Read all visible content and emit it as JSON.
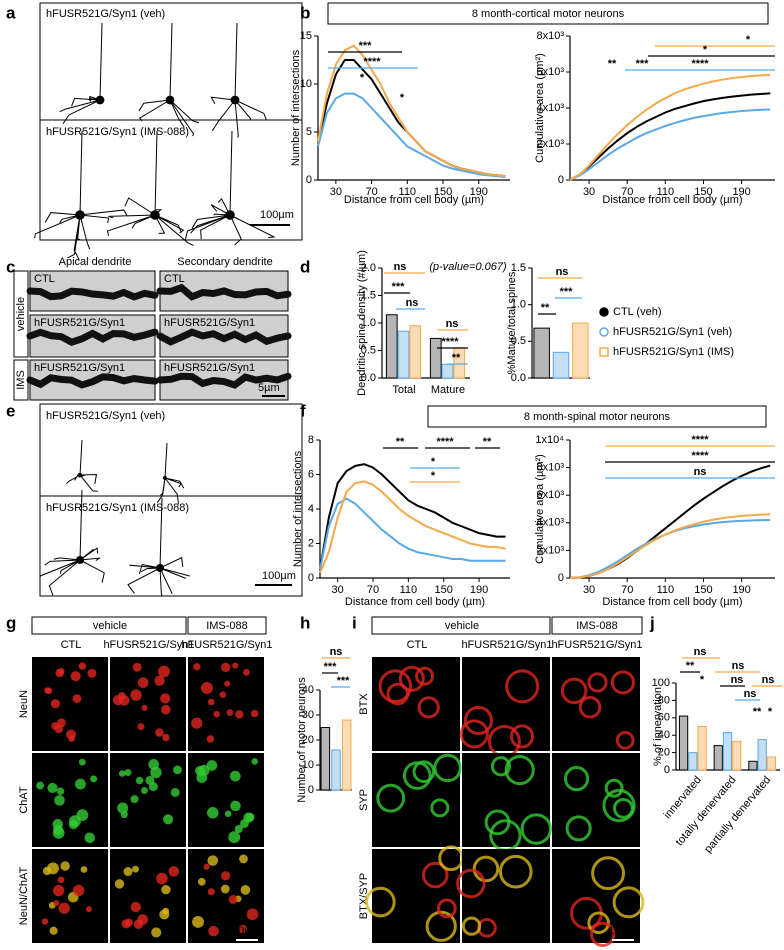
{
  "figure": {
    "panel_labels": [
      "a",
      "b",
      "c",
      "d",
      "e",
      "f",
      "g",
      "h",
      "i",
      "j"
    ],
    "a": {
      "labels": [
        "hFUSR521G/Syn1 (veh)",
        "hFUSR521G/Syn1 (IMS-088)"
      ],
      "scale": "100µm"
    },
    "b": {
      "header": "8 month-cortical motor neurons"
    },
    "c": {
      "columns": [
        "Apical dendrite",
        "Secondary dendrite"
      ],
      "row_groups": [
        "vehicle",
        "IMS"
      ],
      "cell_labels": [
        "CTL",
        "CTL",
        "hFUSR521G/Syn1",
        "hFUSR521G/Syn1",
        "hFUSR521G/Syn1",
        "hFUSR521G/Syn1"
      ],
      "scale": "5µm"
    },
    "e": {
      "labels": [
        "hFUSR521G/Syn1 (veh)",
        "hFUSR521G/Syn1 (IMS-088)"
      ],
      "scale": "100µm"
    },
    "f": {
      "header": "8 month-spinal motor neurons"
    },
    "g": {
      "groups": [
        "vehicle",
        "IMS-088"
      ],
      "columns": [
        "CTL",
        "hFUSR521G/Syn1",
        "hFUSR521G/Syn1"
      ],
      "rows": [
        "NeuN",
        "ChAT",
        "NeuN/ChAT"
      ],
      "scale": "50µm"
    },
    "i": {
      "groups": [
        "vehicle",
        "IMS-088"
      ],
      "columns": [
        "CTL",
        "hFUSR521G/Syn1",
        "hFUSR521G/Syn1"
      ],
      "rows": [
        "BTX",
        "SYP",
        "BTX/SYP"
      ],
      "scale": "15µm"
    }
  },
  "chart_data": [
    {
      "type": "line",
      "xlabel": "Distance from cell body (µm)",
      "ylabel": "Number of intersections",
      "x": [
        10,
        20,
        30,
        40,
        50,
        60,
        70,
        80,
        90,
        100,
        110,
        120,
        130,
        140,
        150,
        160,
        170,
        180,
        190,
        200,
        210,
        220
      ],
      "xlim": [
        10,
        225
      ],
      "xticks": [
        30,
        70,
        110,
        150,
        190
      ],
      "ylim": [
        0,
        15
      ],
      "yticks": [
        0,
        5,
        10,
        15
      ],
      "series": [
        {
          "color": "#000000",
          "values": [
            4,
            8,
            11,
            12.5,
            12.5,
            11.5,
            10.5,
            9,
            7.5,
            6,
            5,
            4,
            3,
            2.5,
            2,
            1.5,
            1.2,
            1,
            0.8,
            0.6,
            0.5,
            0.4
          ]
        },
        {
          "color": "#5aa9e6",
          "values": [
            3.5,
            7,
            8.5,
            9,
            9,
            8.5,
            7.5,
            6.5,
            5.5,
            4.5,
            3.5,
            3,
            2.5,
            2,
            1.5,
            1.2,
            1,
            0.8,
            0.6,
            0.5,
            0.4,
            0.3
          ]
        },
        {
          "color": "#f5a94a",
          "values": [
            4,
            9,
            12,
            13.5,
            14,
            13,
            11.5,
            10,
            8,
            6.5,
            5,
            4,
            3,
            2.5,
            2,
            1.5,
            1.2,
            1,
            0.8,
            0.6,
            0.5,
            0.4
          ]
        }
      ],
      "annotations": [
        {
          "text": "***",
          "color": "#000000"
        },
        {
          "text": "****",
          "color": "#5aa9e6"
        },
        {
          "text": "*",
          "color": "#f5a94a"
        },
        {
          "text": "*",
          "color": "#f5a94a"
        }
      ]
    },
    {
      "type": "line",
      "xlabel": "Distance from cell body (µm)",
      "ylabel": "Cumulative area (µm²)",
      "x": [
        10,
        20,
        30,
        40,
        50,
        60,
        70,
        80,
        90,
        100,
        110,
        120,
        130,
        140,
        150,
        160,
        170,
        180,
        190,
        200,
        210,
        220
      ],
      "xlim": [
        10,
        225
      ],
      "xticks": [
        30,
        70,
        110,
        150,
        190
      ],
      "ylim": [
        0,
        8000
      ],
      "yticks": [
        0,
        {
          "value": 2000,
          "label": "2x10³"
        },
        {
          "value": 4000,
          "label": "4x10³"
        },
        {
          "value": 6000,
          "label": "6x10³"
        },
        {
          "value": 8000,
          "label": "8x10³"
        }
      ],
      "series": [
        {
          "color": "#000000",
          "values": [
            0,
            300,
            750,
            1250,
            1750,
            2200,
            2600,
            2950,
            3250,
            3500,
            3750,
            3950,
            4100,
            4250,
            4380,
            4480,
            4560,
            4630,
            4690,
            4740,
            4780,
            4810
          ]
        },
        {
          "color": "#5aa9e6",
          "values": [
            0,
            250,
            600,
            1000,
            1400,
            1750,
            2050,
            2350,
            2600,
            2800,
            3000,
            3170,
            3320,
            3450,
            3550,
            3640,
            3720,
            3780,
            3830,
            3870,
            3900,
            3920
          ]
        },
        {
          "color": "#f5a94a",
          "values": [
            0,
            300,
            800,
            1400,
            2000,
            2550,
            3050,
            3500,
            3900,
            4250,
            4550,
            4820,
            5030,
            5200,
            5350,
            5480,
            5580,
            5660,
            5720,
            5770,
            5810,
            5840
          ]
        }
      ],
      "annotations": [
        {
          "text": "*",
          "color": "#f5a94a"
        },
        {
          "text": "*",
          "color": "#000000"
        },
        {
          "text": "**",
          "color": "#5aa9e6"
        },
        {
          "text": "***",
          "color": "#5aa9e6"
        },
        {
          "text": "****",
          "color": "#5aa9e6"
        }
      ]
    },
    {
      "type": "bar",
      "ylabel": "Dendritic spine density (#/µm)",
      "categories": [
        "Total",
        "Mature"
      ],
      "ylim": [
        0,
        2
      ],
      "yticks": [
        {
          "value": 0,
          "label": "0.0"
        },
        0.5,
        {
          "value": 1,
          "label": "1.0"
        },
        1.5,
        {
          "value": 2,
          "label": "2.0"
        }
      ],
      "series": [
        {
          "name": "CTL (veh)",
          "color": "#000000",
          "values": [
            1.15,
            0.72
          ]
        },
        {
          "name": "hFUSR521G/Syn1 (veh)",
          "color": "#5aa9e6",
          "values": [
            0.85,
            0.25
          ]
        },
        {
          "name": "hFUSR521G/Syn1 (IMS)",
          "color": "#f5a94a",
          "values": [
            0.95,
            0.55
          ]
        }
      ],
      "legend": "right",
      "annotations": [
        {
          "text": "ns",
          "color": "#f5a94a"
        },
        {
          "text": "(p-value=0.067)",
          "color": "#f5a94a"
        },
        {
          "text": "***",
          "color": "#000000"
        },
        {
          "text": "ns",
          "color": "#5aa9e6"
        },
        {
          "text": "ns",
          "color": "#f5a94a"
        },
        {
          "text": "****",
          "color": "#000000"
        },
        {
          "text": "**",
          "color": "#5aa9e6"
        }
      ]
    },
    {
      "type": "bar",
      "ylabel": "%Mature/total spines",
      "ylim": [
        0,
        1.5
      ],
      "yticks": [
        {
          "value": 0,
          "label": "0.0"
        },
        0.5,
        {
          "value": 1,
          "label": "1.0"
        },
        1.5
      ],
      "values": [
        0.68,
        0.35,
        0.75
      ],
      "colors": [
        "#000000",
        "#5aa9e6",
        "#f5a94a"
      ],
      "annotations": [
        {
          "text": "ns",
          "color": "#f5a94a"
        },
        {
          "text": "***",
          "color": "#5aa9e6"
        },
        {
          "text": "**",
          "color": "#000000"
        }
      ]
    },
    {
      "type": "line",
      "xlabel": "Distance from cell body (µm)",
      "ylabel": "Number of intersections",
      "x": [
        10,
        20,
        30,
        40,
        50,
        60,
        70,
        80,
        90,
        100,
        110,
        120,
        130,
        140,
        150,
        160,
        170,
        180,
        190,
        200,
        210,
        220
      ],
      "xlim": [
        10,
        225
      ],
      "xticks": [
        30,
        70,
        110,
        150,
        190
      ],
      "ylim": [
        0,
        8
      ],
      "yticks": [
        0,
        2,
        4,
        6,
        8
      ],
      "series": [
        {
          "color": "#000000",
          "values": [
            0.5,
            3.5,
            5.5,
            6.2,
            6.5,
            6.6,
            6.4,
            6,
            5.5,
            5,
            4.5,
            4.2,
            4,
            3.8,
            3.5,
            3.2,
            3,
            2.8,
            2.6,
            2.5,
            2.4,
            2.4
          ]
        },
        {
          "color": "#5aa9e6",
          "values": [
            0.5,
            3,
            4.3,
            4.6,
            4.3,
            3.8,
            3.3,
            2.8,
            2.4,
            2,
            1.7,
            1.5,
            1.4,
            1.3,
            1.2,
            1.1,
            1.1,
            1,
            1,
            1,
            1,
            1
          ]
        },
        {
          "color": "#f5a94a",
          "values": [
            0.3,
            1.5,
            3.5,
            5,
            5.5,
            5.6,
            5.4,
            5,
            4.5,
            4,
            3.6,
            3.3,
            3,
            2.8,
            2.6,
            2.4,
            2.2,
            2,
            1.9,
            1.8,
            1.8,
            1.7
          ]
        }
      ],
      "annotations": [
        {
          "text": "**",
          "color": "#000000"
        },
        {
          "text": "****",
          "color": "#000000"
        },
        {
          "text": "**",
          "color": "#000000"
        },
        {
          "text": "*",
          "color": "#5aa9e6"
        },
        {
          "text": "*",
          "color": "#f5a94a"
        }
      ]
    },
    {
      "type": "line",
      "xlabel": "Distance from cell body (µm)",
      "ylabel": "Cumulative area (µm²)",
      "x": [
        10,
        20,
        30,
        40,
        50,
        60,
        70,
        80,
        90,
        100,
        110,
        120,
        130,
        140,
        150,
        160,
        170,
        180,
        190,
        200,
        210,
        220
      ],
      "xlim": [
        10,
        225
      ],
      "xticks": [
        30,
        70,
        110,
        150,
        190
      ],
      "ylim": [
        0,
        10000
      ],
      "yticks": [
        0,
        {
          "value": 2000,
          "label": "2x10³"
        },
        {
          "value": 4000,
          "label": "4x10³"
        },
        {
          "value": 6000,
          "label": "6x10³"
        },
        {
          "value": 8000,
          "label": "8x10³"
        },
        {
          "value": 10000,
          "label": "1x10⁴"
        }
      ],
      "series": [
        {
          "color": "#000000",
          "values": [
            0,
            50,
            150,
            350,
            650,
            1000,
            1450,
            1950,
            2500,
            3050,
            3600,
            4150,
            4700,
            5250,
            5750,
            6200,
            6650,
            7050,
            7400,
            7700,
            7950,
            8150
          ]
        },
        {
          "color": "#5aa9e6",
          "values": [
            0,
            50,
            200,
            450,
            800,
            1200,
            1650,
            2100,
            2500,
            2850,
            3150,
            3400,
            3600,
            3750,
            3880,
            3980,
            4050,
            4100,
            4140,
            4170,
            4190,
            4200
          ]
        },
        {
          "color": "#f5a94a",
          "values": [
            0,
            40,
            150,
            350,
            650,
            1050,
            1500,
            1950,
            2400,
            2800,
            3150,
            3450,
            3700,
            3900,
            4080,
            4220,
            4340,
            4430,
            4500,
            4550,
            4590,
            4620
          ]
        }
      ],
      "annotations": [
        {
          "text": "****",
          "color": "#f5a94a"
        },
        {
          "text": "****",
          "color": "#000000"
        },
        {
          "text": "ns",
          "color": "#5aa9e6"
        }
      ]
    },
    {
      "type": "bar",
      "ylabel": "Number of motor neurons",
      "ylim": [
        0,
        40
      ],
      "yticks": [
        0,
        10,
        20,
        30,
        40
      ],
      "values": [
        25,
        16,
        28
      ],
      "colors": [
        "#000000",
        "#5aa9e6",
        "#f5a94a"
      ],
      "annotations": [
        {
          "text": "ns",
          "color": "#f5a94a"
        },
        {
          "text": "***",
          "color": "#000000"
        },
        {
          "text": "***",
          "color": "#5aa9e6"
        }
      ]
    },
    {
      "type": "bar",
      "ylabel": "% of innervation",
      "categories": [
        "innervated",
        "totally denervated",
        "partially denervated"
      ],
      "ylim": [
        0,
        100
      ],
      "yticks": [
        0,
        20,
        40,
        60,
        80,
        100
      ],
      "series": [
        {
          "color": "#000000",
          "values": [
            62,
            28,
            10
          ]
        },
        {
          "color": "#5aa9e6",
          "values": [
            20,
            43,
            35
          ]
        },
        {
          "color": "#f5a94a",
          "values": [
            50,
            33,
            15
          ]
        }
      ],
      "annotations": [
        {
          "text": "ns",
          "color": "#f5a94a"
        },
        {
          "text": "**",
          "color": "#000000"
        },
        {
          "text": "*",
          "color": "#5aa9e6"
        },
        {
          "text": "ns",
          "color": "#f5a94a"
        },
        {
          "text": "ns",
          "color": "#000000"
        },
        {
          "text": "ns",
          "color": "#5aa9e6"
        },
        {
          "text": "ns",
          "color": "#f5a94a"
        },
        {
          "text": "**",
          "color": "#000000"
        },
        {
          "text": "*",
          "color": "#5aa9e6"
        }
      ]
    }
  ]
}
